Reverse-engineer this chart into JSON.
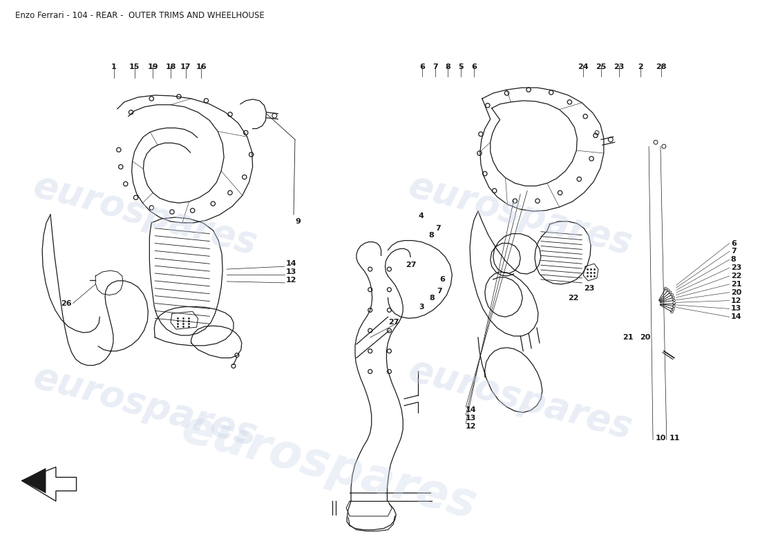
{
  "title": "Enzo Ferrari - 104 - REAR -  OUTER TRIMS AND WHEELHOUSE",
  "title_fontsize": 8.5,
  "background_color": "#ffffff",
  "watermark_text": "eurospares",
  "wm_color1": "#c8d4e8",
  "wm_color2": "#c8d4e8",
  "wm_alpha": 0.4,
  "line_color": "#1a1a1a",
  "fig_width": 11.0,
  "fig_height": 8.0,
  "dpi": 100,
  "left_bottom_labels": [
    [
      "1",
      155,
      88
    ],
    [
      "15",
      185,
      88
    ],
    [
      "19",
      212,
      88
    ],
    [
      "18",
      238,
      88
    ],
    [
      "17",
      260,
      88
    ],
    [
      "16",
      283,
      88
    ]
  ],
  "left_side_labels": [
    [
      "9",
      418,
      620
    ],
    [
      "14",
      405,
      505
    ],
    [
      "13",
      405,
      492
    ],
    [
      "12",
      405,
      479
    ],
    [
      "26",
      100,
      452
    ]
  ],
  "center_labels": [
    [
      "3",
      601,
      446
    ],
    [
      "8",
      617,
      432
    ],
    [
      "7",
      628,
      422
    ],
    [
      "6",
      632,
      405
    ],
    [
      "27",
      582,
      384
    ],
    [
      "4",
      601,
      312
    ],
    [
      "8",
      616,
      340
    ],
    [
      "7",
      626,
      330
    ]
  ],
  "center_bottom_labels": [
    [
      "6",
      606,
      88
    ],
    [
      "7",
      625,
      88
    ],
    [
      "8",
      644,
      88
    ],
    [
      "5",
      663,
      88
    ],
    [
      "6",
      682,
      88
    ]
  ],
  "right_top_labels": [
    [
      "12",
      670,
      620
    ],
    [
      "13",
      670,
      608
    ],
    [
      "14",
      670,
      596
    ],
    [
      "10",
      948,
      638
    ],
    [
      "11",
      968,
      638
    ]
  ],
  "right_side_labels": [
    [
      "21",
      900,
      490
    ],
    [
      "20",
      925,
      490
    ],
    [
      "22",
      820,
      432
    ],
    [
      "23",
      843,
      418
    ]
  ],
  "right_cluster_labels": [
    [
      "14",
      1058,
      460
    ],
    [
      "13",
      1058,
      448
    ],
    [
      "12",
      1058,
      436
    ],
    [
      "20",
      1058,
      424
    ],
    [
      "21",
      1058,
      412
    ],
    [
      "22",
      1058,
      400
    ],
    [
      "23",
      1058,
      388
    ],
    [
      "8",
      1058,
      376
    ],
    [
      "7",
      1058,
      364
    ],
    [
      "6",
      1058,
      352
    ]
  ],
  "right_bottom_labels": [
    [
      "24",
      842,
      88
    ],
    [
      "25",
      868,
      88
    ],
    [
      "23",
      894,
      88
    ],
    [
      "2",
      926,
      88
    ],
    [
      "28",
      956,
      88
    ]
  ]
}
